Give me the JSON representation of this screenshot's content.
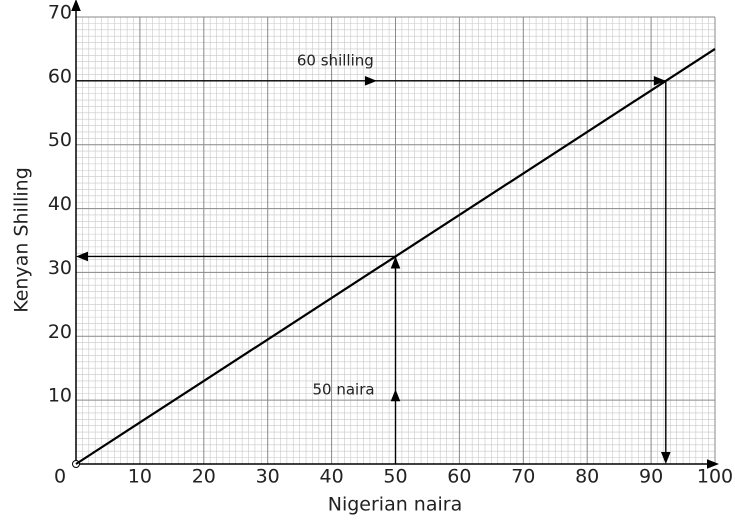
{
  "chart_data": {
    "type": "line",
    "x_label": "Nigerian naira",
    "y_label": "Kenyan Shilling",
    "x": [
      0,
      100
    ],
    "series": [
      {
        "color": "#000000",
        "values": [
          0,
          65
        ]
      }
    ],
    "xlim": [
      0,
      100
    ],
    "ylim": [
      0,
      70
    ],
    "xticks": [
      0,
      10,
      20,
      30,
      40,
      50,
      60,
      70,
      80,
      90,
      100
    ],
    "yticks": [
      10,
      20,
      30,
      40,
      50,
      60,
      70
    ],
    "grid": true,
    "annotations": [
      {
        "text": "60 shilling",
        "x": 92.3,
        "y": 60
      },
      {
        "text": "50 naira",
        "x": 50,
        "y": 32.5
      }
    ]
  }
}
